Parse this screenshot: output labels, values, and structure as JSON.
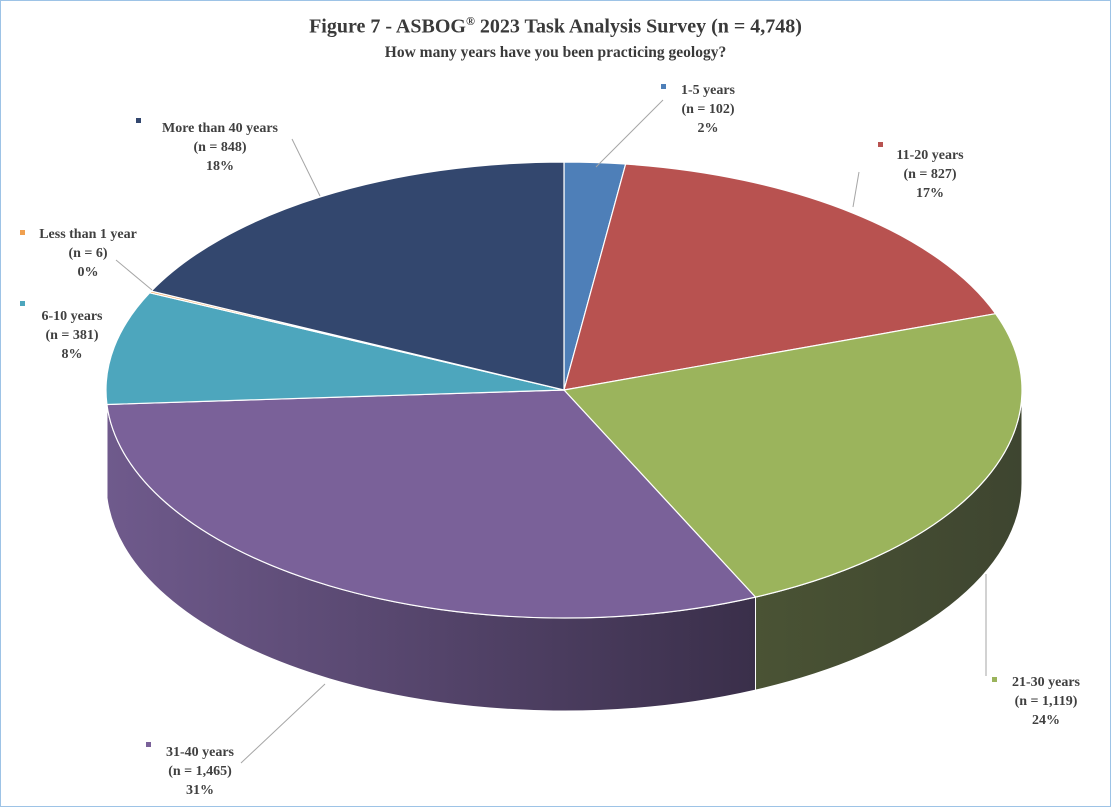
{
  "title": {
    "prefix": "Figure 7 - ASBOG",
    "superscript": "®",
    "suffix": " 2023 Task Analysis  Survey (n = 4,748)"
  },
  "subtitle": "How many  years have you been practicing  geology?",
  "chart_data": {
    "type": "pie",
    "style": "3d",
    "title": "Figure 7 - ASBOG® 2023 Task Analysis Survey (n = 4,748)",
    "subtitle": "How many years have you been practicing geology?",
    "slices": [
      {
        "label": "1-5 years",
        "n_label": "(n = 102)",
        "pct_label": "2%",
        "value": 102,
        "color": "#4e7fb8"
      },
      {
        "label": "11-20 years",
        "n_label": "(n = 827)",
        "pct_label": "17%",
        "value": 827,
        "color": "#b85250"
      },
      {
        "label": "21-30 years",
        "n_label": "(n = 1,119)",
        "pct_label": "24%",
        "value": 1119,
        "color": "#9bb45c"
      },
      {
        "label": "31-40 years",
        "n_label": "(n = 1,465)",
        "pct_label": "31%",
        "value": 1465,
        "color": "#7a6199"
      },
      {
        "label": "6-10 years",
        "n_label": "(n = 381)",
        "pct_label": "8%",
        "value": 381,
        "color": "#4da6bd"
      },
      {
        "label": "Less than 1 year",
        "n_label": "(n = 6)",
        "pct_label": "0%",
        "value": 6,
        "color": "#f0a050"
      },
      {
        "label": "More than 40 years",
        "n_label": "(n = 848)",
        "pct_label": "18%",
        "value": 848,
        "color": "#33476e"
      }
    ]
  }
}
